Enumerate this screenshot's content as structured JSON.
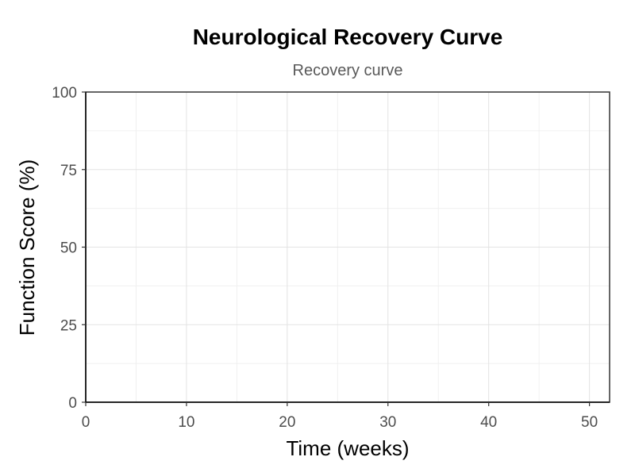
{
  "chart_data": {
    "type": "line",
    "title": "Neurological Recovery Curve",
    "subtitle": "Recovery curve",
    "xlabel": "Time (weeks)",
    "ylabel": "Function Score (%)",
    "xlim": [
      0,
      52
    ],
    "ylim": [
      0,
      100
    ],
    "x_ticks": [
      0,
      10,
      20,
      30,
      40,
      50
    ],
    "x_tick_labels": [
      "0",
      "10",
      "20",
      "30",
      "40",
      "50"
    ],
    "y_ticks": [
      0,
      25,
      50,
      75,
      100
    ],
    "y_tick_labels": [
      "0",
      "25",
      "50",
      "75",
      "100"
    ],
    "x_minor_ticks": [
      5,
      15,
      25,
      35,
      45
    ],
    "y_minor_ticks": [
      12.5,
      37.5,
      62.5,
      87.5
    ],
    "grid": true,
    "series": []
  }
}
